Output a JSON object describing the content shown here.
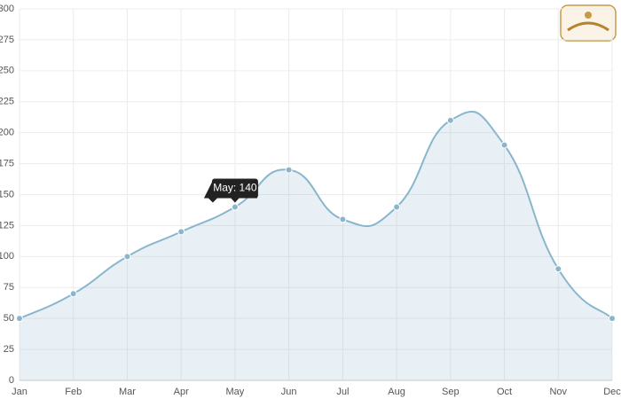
{
  "chart_data": {
    "type": "line",
    "categories": [
      "Jan",
      "Feb",
      "Mar",
      "Apr",
      "May",
      "Jun",
      "Jul",
      "Aug",
      "Sep",
      "Oct",
      "Nov",
      "Dec"
    ],
    "series": [
      {
        "color": "#8ab6cc",
        "values": [
          50,
          70,
          100,
          120,
          140,
          170,
          130,
          140,
          210,
          190,
          90,
          50
        ]
      }
    ],
    "ylim": [
      0,
      300
    ],
    "yticks": [
      0,
      25,
      50,
      75,
      100,
      125,
      150,
      175,
      200,
      225,
      250,
      275,
      300
    ],
    "grid": true,
    "annotation": "May: 140"
  }
}
